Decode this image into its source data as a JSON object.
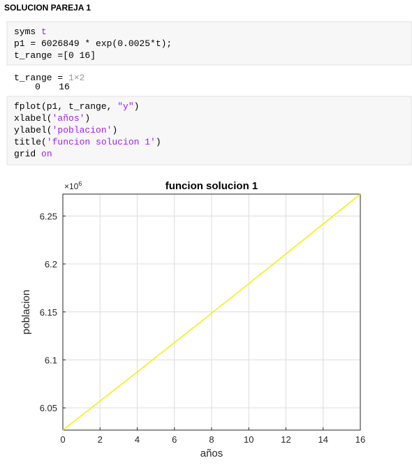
{
  "header": {
    "title": "SOLUCION PAREJA 1"
  },
  "code_blocks": [
    {
      "lines": [
        [
          {
            "text": "syms ",
            "color": "#000000"
          },
          {
            "text": "t",
            "color": "#a020f0"
          }
        ],
        [
          {
            "text": "p1 = 6026849 * exp(0.0025*t);",
            "color": "#000000"
          }
        ],
        [
          {
            "text": "t_range =[0 16]",
            "color": "#000000"
          }
        ]
      ]
    },
    {
      "lines": [
        [
          {
            "text": "fplot(p1, t_range, ",
            "color": "#000000"
          },
          {
            "text": "\"y\"",
            "color": "#a020f0"
          },
          {
            "text": ")",
            "color": "#000000"
          }
        ],
        [
          {
            "text": "xlabel(",
            "color": "#000000"
          },
          {
            "text": "'años'",
            "color": "#a020f0"
          },
          {
            "text": ")",
            "color": "#000000"
          }
        ],
        [
          {
            "text": "ylabel(",
            "color": "#000000"
          },
          {
            "text": "'poblacion'",
            "color": "#a020f0"
          },
          {
            "text": ")",
            "color": "#000000"
          }
        ],
        [
          {
            "text": "title(",
            "color": "#000000"
          },
          {
            "text": "'funcion solucion 1'",
            "color": "#a020f0"
          },
          {
            "text": ")",
            "color": "#000000"
          }
        ],
        [
          {
            "text": "grid ",
            "color": "#000000"
          },
          {
            "text": "on",
            "color": "#a020f0"
          }
        ]
      ]
    }
  ],
  "output": {
    "name": "t_range =",
    "size": "1×2",
    "values": [
      0,
      16
    ]
  },
  "chart_data": {
    "type": "line",
    "title": "funcion solucion 1",
    "xlabel": "años",
    "ylabel": "poblacion",
    "exponent_base": "×10",
    "exponent": "6",
    "x": [
      0,
      4,
      8,
      12,
      16
    ],
    "values": [
      6.026849,
      6.087419,
      6.148597,
      6.210392,
      6.272806
    ],
    "color": "#f5f000",
    "xlim": [
      0,
      16
    ],
    "xticks": [
      0,
      2,
      4,
      6,
      8,
      10,
      12,
      14,
      16
    ],
    "ylim": [
      6.026849,
      6.272806
    ],
    "yticks": [
      6.05,
      6.1,
      6.15,
      6.2,
      6.25
    ],
    "grid": true
  }
}
